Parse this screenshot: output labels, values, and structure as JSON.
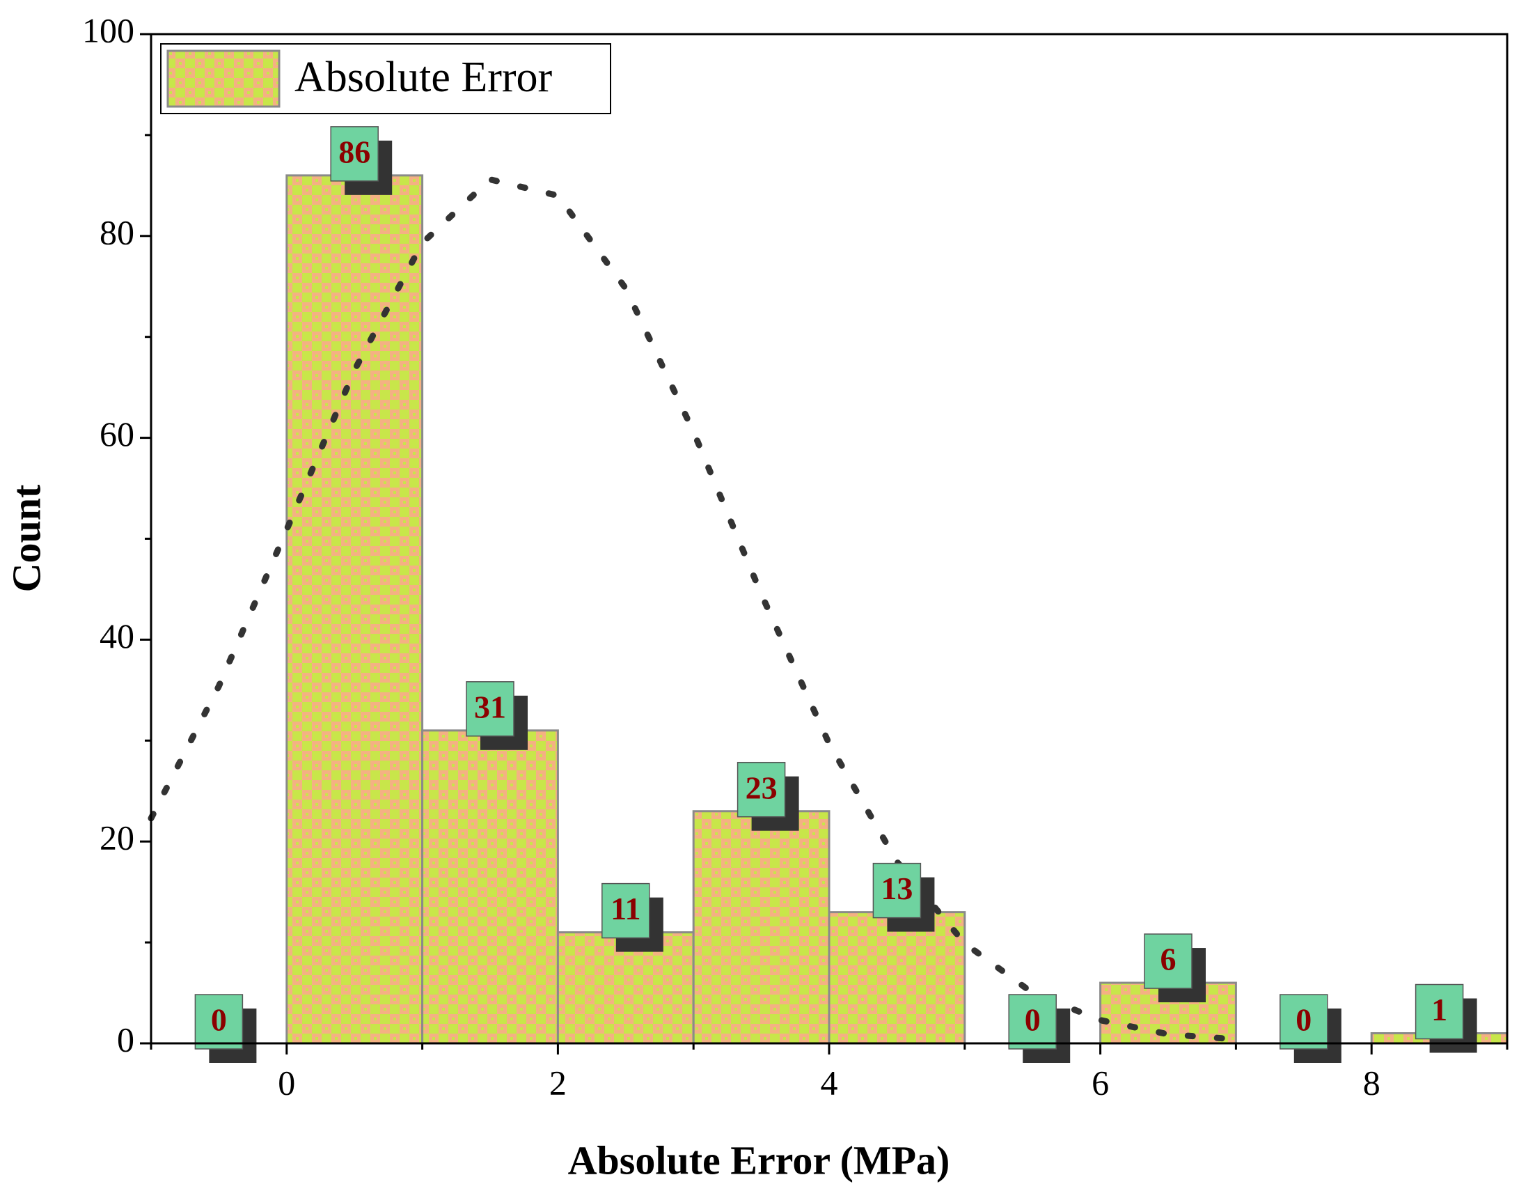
{
  "chart_data": {
    "type": "histogram",
    "xlabel": "Absolute Error (MPa)",
    "ylabel": "Count",
    "bins": [
      -1,
      0,
      1,
      2,
      3,
      4,
      5,
      6,
      7,
      8,
      9
    ],
    "series": [
      {
        "name": "Absolute Error",
        "color": "#c8e64a",
        "color2": "#f4b183",
        "edgecolor": "#8a8a8a",
        "values": [
          0,
          86,
          31,
          11,
          23,
          13,
          0,
          6,
          0,
          1
        ]
      }
    ],
    "curve": {
      "color": "#333333",
      "x": [
        -1,
        -0.5,
        0,
        0.5,
        1,
        1.5,
        2,
        2.5,
        3,
        3.5,
        4,
        4.5,
        5,
        5.5,
        6,
        6.5,
        7
      ],
      "values": [
        22.3,
        35.4,
        50.9,
        66.7,
        79.3,
        85.6,
        84.0,
        74.8,
        60.6,
        44.5,
        29.7,
        18.0,
        9.9,
        5.0,
        2.3,
        0.9,
        0.4
      ]
    },
    "xlim": [
      -1,
      9
    ],
    "ylim": [
      0,
      100
    ],
    "xticks": [
      0,
      2,
      4,
      6,
      8
    ],
    "yticks": [
      0,
      20,
      40,
      60,
      80,
      100
    ],
    "xminor": [
      -1,
      1,
      3,
      5,
      7,
      9
    ],
    "yminor": [
      10,
      30,
      50,
      70,
      90
    ],
    "legend": "upper left",
    "label_color": "#8b0000",
    "label_box": "#6fd3a0"
  }
}
